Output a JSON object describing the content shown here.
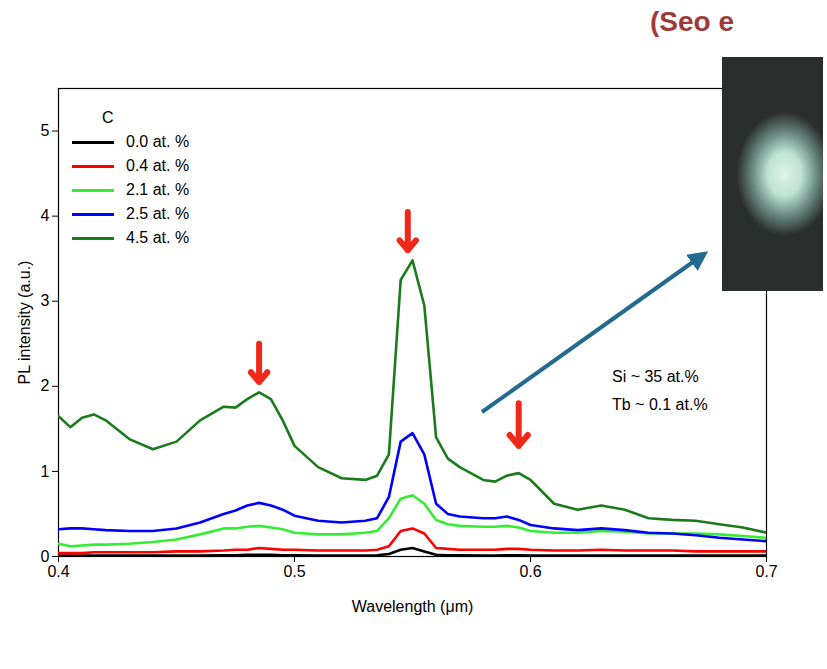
{
  "chart_data": {
    "type": "line",
    "title": "(Seo e",
    "x_label": "Wavelength (μm)",
    "y_label": "PL intensity (a.u.)",
    "legend_title": "C",
    "legend": "upper left",
    "annotations": [
      "Si ~ 35 at.%",
      "Tb ~ 0.1 at.%"
    ],
    "xlim": [
      0.4,
      0.7
    ],
    "xticks": [
      0.4,
      0.5,
      0.6,
      0.7
    ],
    "ylim": [
      0,
      5.5
    ],
    "yticks": [
      0,
      1,
      2,
      3,
      4,
      5
    ],
    "x": [
      0.4,
      0.405,
      0.41,
      0.415,
      0.42,
      0.43,
      0.44,
      0.45,
      0.46,
      0.47,
      0.475,
      0.48,
      0.485,
      0.49,
      0.495,
      0.5,
      0.51,
      0.52,
      0.53,
      0.535,
      0.54,
      0.545,
      0.55,
      0.555,
      0.56,
      0.565,
      0.57,
      0.58,
      0.585,
      0.59,
      0.595,
      0.6,
      0.61,
      0.62,
      0.63,
      0.64,
      0.65,
      0.66,
      0.67,
      0.68,
      0.69,
      0.7
    ],
    "series": [
      {
        "name": "0.0 at. %",
        "color": "#000000",
        "values": [
          0.01,
          0.01,
          0.01,
          0.01,
          0.01,
          0.01,
          0.01,
          0.01,
          0.01,
          0.015,
          0.015,
          0.02,
          0.02,
          0.02,
          0.015,
          0.015,
          0.01,
          0.01,
          0.01,
          0.015,
          0.03,
          0.08,
          0.1,
          0.06,
          0.02,
          0.015,
          0.015,
          0.01,
          0.01,
          0.015,
          0.015,
          0.01,
          0.01,
          0.01,
          0.01,
          0.01,
          0.01,
          0.01,
          0.01,
          0.01,
          0.01,
          0.01
        ]
      },
      {
        "name": "0.4 at. %",
        "color": "#ff0000",
        "values": [
          0.04,
          0.04,
          0.04,
          0.05,
          0.05,
          0.05,
          0.05,
          0.06,
          0.06,
          0.07,
          0.08,
          0.08,
          0.1,
          0.09,
          0.08,
          0.08,
          0.07,
          0.07,
          0.07,
          0.08,
          0.12,
          0.3,
          0.33,
          0.27,
          0.1,
          0.09,
          0.08,
          0.08,
          0.08,
          0.09,
          0.09,
          0.08,
          0.07,
          0.07,
          0.08,
          0.07,
          0.07,
          0.07,
          0.06,
          0.06,
          0.06,
          0.06
        ]
      },
      {
        "name": "2.1 at. %",
        "color": "#33ee33",
        "values": [
          0.15,
          0.12,
          0.13,
          0.14,
          0.14,
          0.15,
          0.17,
          0.2,
          0.26,
          0.33,
          0.33,
          0.35,
          0.36,
          0.34,
          0.32,
          0.28,
          0.26,
          0.26,
          0.28,
          0.3,
          0.45,
          0.68,
          0.72,
          0.62,
          0.43,
          0.38,
          0.36,
          0.35,
          0.35,
          0.36,
          0.34,
          0.3,
          0.28,
          0.28,
          0.3,
          0.29,
          0.27,
          0.27,
          0.27,
          0.26,
          0.24,
          0.22
        ]
      },
      {
        "name": "2.5 at. %",
        "color": "#0000ff",
        "values": [
          0.32,
          0.33,
          0.33,
          0.32,
          0.31,
          0.3,
          0.3,
          0.33,
          0.4,
          0.5,
          0.54,
          0.6,
          0.63,
          0.6,
          0.55,
          0.48,
          0.42,
          0.4,
          0.42,
          0.45,
          0.7,
          1.35,
          1.45,
          1.2,
          0.62,
          0.5,
          0.47,
          0.45,
          0.45,
          0.47,
          0.43,
          0.37,
          0.33,
          0.31,
          0.33,
          0.31,
          0.28,
          0.27,
          0.25,
          0.22,
          0.2,
          0.18
        ]
      },
      {
        "name": "4.5 at. %",
        "color": "#1b7a1b",
        "values": [
          1.65,
          1.52,
          1.63,
          1.67,
          1.6,
          1.38,
          1.26,
          1.35,
          1.6,
          1.76,
          1.75,
          1.85,
          1.93,
          1.85,
          1.6,
          1.3,
          1.05,
          0.92,
          0.9,
          0.95,
          1.2,
          3.25,
          3.48,
          2.95,
          1.4,
          1.15,
          1.05,
          0.9,
          0.88,
          0.95,
          0.98,
          0.9,
          0.62,
          0.55,
          0.6,
          0.55,
          0.45,
          0.43,
          0.42,
          0.38,
          0.34,
          0.28
        ]
      }
    ],
    "arrows": [
      {
        "x": 0.485,
        "y_start": 2.5,
        "y_end": 2.05
      },
      {
        "x": 0.548,
        "y_start": 4.05,
        "y_end": 3.6
      },
      {
        "x": 0.595,
        "y_start": 1.8,
        "y_end": 1.3
      }
    ]
  }
}
